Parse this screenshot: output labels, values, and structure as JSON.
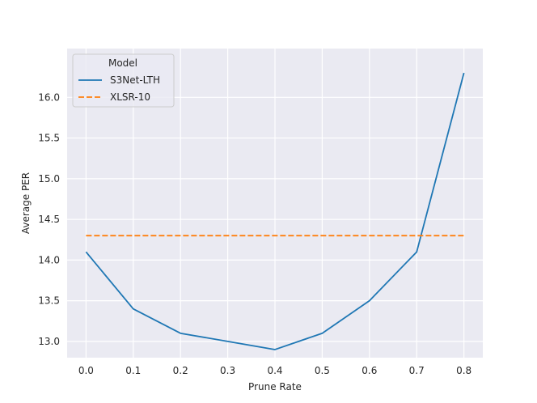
{
  "chart_data": {
    "type": "line",
    "title": "",
    "xlabel": "Prune Rate",
    "ylabel": "Average PER",
    "xlim": [
      -0.04,
      0.84
    ],
    "ylim": [
      12.8,
      16.6
    ],
    "xticks": [
      0.0,
      0.1,
      0.2,
      0.3,
      0.4,
      0.5,
      0.6,
      0.7,
      0.8
    ],
    "xtick_labels": [
      "0.0",
      "0.1",
      "0.2",
      "0.3",
      "0.4",
      "0.5",
      "0.6",
      "0.7",
      "0.8"
    ],
    "yticks": [
      13.0,
      13.5,
      14.0,
      14.5,
      15.0,
      15.5,
      16.0
    ],
    "ytick_labels": [
      "13.0",
      "13.5",
      "14.0",
      "14.5",
      "15.0",
      "15.5",
      "16.0"
    ],
    "grid": true,
    "legend": {
      "title": "Model",
      "placement": "top-left"
    },
    "series": [
      {
        "name": "S3Net-LTH",
        "style": "solid",
        "color": "#1f77b4",
        "x": [
          0.0,
          0.1,
          0.2,
          0.3,
          0.4,
          0.5,
          0.6,
          0.7,
          0.8
        ],
        "y": [
          14.1,
          13.4,
          13.1,
          13.0,
          12.9,
          13.1,
          13.5,
          14.1,
          16.3
        ]
      },
      {
        "name": "XLSR-10",
        "style": "dashed",
        "color": "#ff7f0e",
        "x": [
          0.0,
          0.8
        ],
        "y": [
          14.3,
          14.3
        ]
      }
    ]
  }
}
